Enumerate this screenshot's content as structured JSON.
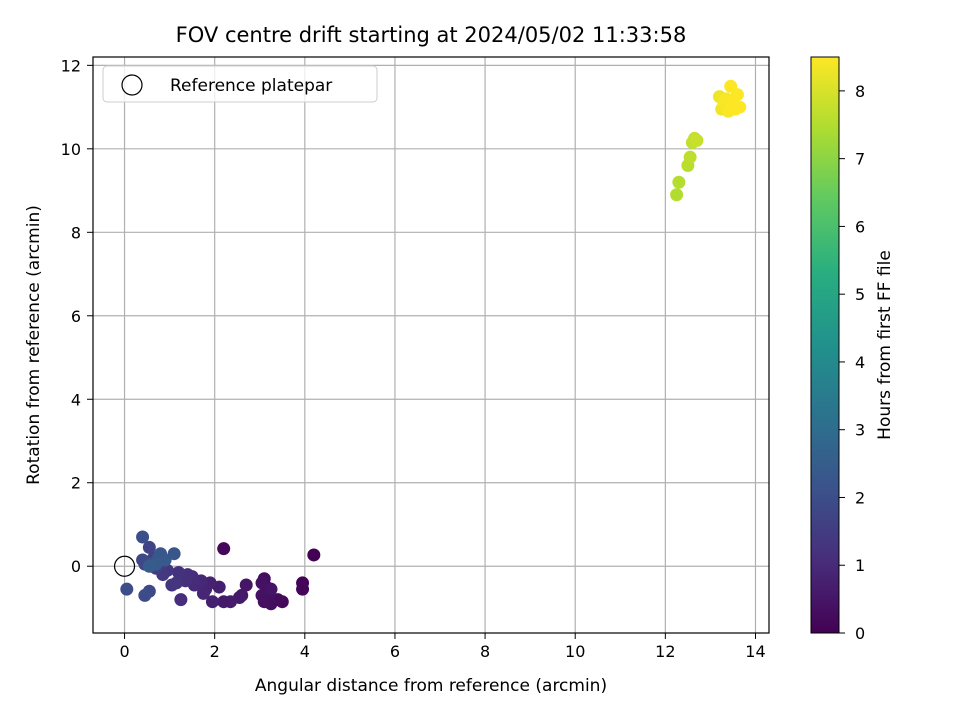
{
  "chart_data": {
    "type": "scatter",
    "title": "FOV centre drift starting at 2024/05/02 11:33:58",
    "xlabel": "Angular distance from reference (arcmin)",
    "ylabel": "Rotation from reference (arcmin)",
    "xlim": [
      -0.7,
      14.3
    ],
    "ylim": [
      -1.6,
      12.2
    ],
    "x_ticks": [
      0,
      2,
      4,
      6,
      8,
      10,
      12,
      14
    ],
    "y_ticks": [
      0,
      2,
      4,
      6,
      8,
      10,
      12
    ],
    "grid": true,
    "colorbar": {
      "label": "Hours from first FF file",
      "range": [
        0,
        8.5
      ],
      "ticks": [
        0,
        1,
        2,
        3,
        4,
        5,
        6,
        7,
        8
      ],
      "colormap": "viridis"
    },
    "legend": {
      "placement": "top-left",
      "entries": [
        "Reference platepar"
      ]
    },
    "reference_point": {
      "x": 0,
      "y": 0
    },
    "points": [
      {
        "x": 4.2,
        "y": 0.27,
        "h": 0.0
      },
      {
        "x": 2.2,
        "y": 0.42,
        "h": 0.15
      },
      {
        "x": 3.95,
        "y": -0.4,
        "h": 0.05
      },
      {
        "x": 3.95,
        "y": -0.55,
        "h": 0.1
      },
      {
        "x": 3.5,
        "y": -0.85,
        "h": 0.2
      },
      {
        "x": 3.4,
        "y": -0.8,
        "h": 0.25
      },
      {
        "x": 3.25,
        "y": -0.9,
        "h": 0.3
      },
      {
        "x": 3.2,
        "y": -0.75,
        "h": 0.35
      },
      {
        "x": 3.15,
        "y": -0.5,
        "h": 0.3
      },
      {
        "x": 3.1,
        "y": -0.85,
        "h": 0.35
      },
      {
        "x": 3.05,
        "y": -0.7,
        "h": 0.4
      },
      {
        "x": 3.1,
        "y": -0.3,
        "h": 0.3
      },
      {
        "x": 3.05,
        "y": -0.4,
        "h": 0.4
      },
      {
        "x": 3.25,
        "y": -0.55,
        "h": 0.45
      },
      {
        "x": 2.7,
        "y": -0.45,
        "h": 0.5
      },
      {
        "x": 2.6,
        "y": -0.7,
        "h": 0.55
      },
      {
        "x": 2.55,
        "y": -0.75,
        "h": 0.6
      },
      {
        "x": 2.35,
        "y": -0.85,
        "h": 0.65
      },
      {
        "x": 2.2,
        "y": -0.85,
        "h": 0.6
      },
      {
        "x": 2.1,
        "y": -0.5,
        "h": 0.7
      },
      {
        "x": 1.95,
        "y": -0.85,
        "h": 0.75
      },
      {
        "x": 1.9,
        "y": -0.4,
        "h": 0.8
      },
      {
        "x": 1.8,
        "y": -0.55,
        "h": 0.85
      },
      {
        "x": 1.75,
        "y": -0.65,
        "h": 0.9
      },
      {
        "x": 1.7,
        "y": -0.35,
        "h": 0.95
      },
      {
        "x": 1.55,
        "y": -0.45,
        "h": 1.0
      },
      {
        "x": 1.5,
        "y": -0.25,
        "h": 1.05
      },
      {
        "x": 1.4,
        "y": -0.2,
        "h": 1.1
      },
      {
        "x": 1.35,
        "y": -0.35,
        "h": 1.15
      },
      {
        "x": 1.25,
        "y": -0.8,
        "h": 1.1
      },
      {
        "x": 1.2,
        "y": -0.15,
        "h": 1.2
      },
      {
        "x": 1.15,
        "y": -0.4,
        "h": 1.25
      },
      {
        "x": 1.05,
        "y": -0.45,
        "h": 1.3
      },
      {
        "x": 0.95,
        "y": -0.1,
        "h": 1.35
      },
      {
        "x": 0.85,
        "y": -0.2,
        "h": 1.4
      },
      {
        "x": 0.8,
        "y": 0.0,
        "h": 1.45
      },
      {
        "x": 0.75,
        "y": 0.1,
        "h": 1.5
      },
      {
        "x": 0.7,
        "y": -0.05,
        "h": 1.55
      },
      {
        "x": 0.65,
        "y": 0.2,
        "h": 1.6
      },
      {
        "x": 0.6,
        "y": 0.0,
        "h": 1.65
      },
      {
        "x": 0.55,
        "y": 0.45,
        "h": 1.7
      },
      {
        "x": 0.5,
        "y": 0.1,
        "h": 1.75
      },
      {
        "x": 0.45,
        "y": 0.05,
        "h": 1.8
      },
      {
        "x": 0.4,
        "y": 0.15,
        "h": 1.85
      },
      {
        "x": 0.55,
        "y": -0.6,
        "h": 1.9
      },
      {
        "x": 0.45,
        "y": -0.7,
        "h": 1.95
      },
      {
        "x": 0.05,
        "y": -0.55,
        "h": 2.0
      },
      {
        "x": 0.4,
        "y": 0.7,
        "h": 2.05
      },
      {
        "x": 0.6,
        "y": 0.05,
        "h": 2.1
      },
      {
        "x": 0.75,
        "y": 0.2,
        "h": 2.2
      },
      {
        "x": 0.8,
        "y": 0.3,
        "h": 2.3
      },
      {
        "x": 0.9,
        "y": 0.15,
        "h": 2.35
      },
      {
        "x": 1.1,
        "y": 0.3,
        "h": 2.25
      },
      {
        "x": 0.7,
        "y": 0.05,
        "h": 2.4
      },
      {
        "x": 0.55,
        "y": 0.0,
        "h": 2.45
      },
      {
        "x": 12.25,
        "y": 8.9,
        "h": 7.5
      },
      {
        "x": 12.3,
        "y": 9.2,
        "h": 7.55
      },
      {
        "x": 12.5,
        "y": 9.6,
        "h": 7.6
      },
      {
        "x": 12.55,
        "y": 9.8,
        "h": 7.65
      },
      {
        "x": 12.6,
        "y": 10.15,
        "h": 7.7
      },
      {
        "x": 12.65,
        "y": 10.25,
        "h": 7.75
      },
      {
        "x": 12.7,
        "y": 10.2,
        "h": 7.8
      },
      {
        "x": 13.2,
        "y": 11.25,
        "h": 8.3
      },
      {
        "x": 13.25,
        "y": 10.95,
        "h": 8.35
      },
      {
        "x": 13.3,
        "y": 11.1,
        "h": 8.4
      },
      {
        "x": 13.35,
        "y": 11.2,
        "h": 8.45
      },
      {
        "x": 13.4,
        "y": 10.9,
        "h": 8.45
      },
      {
        "x": 13.45,
        "y": 11.5,
        "h": 8.5
      },
      {
        "x": 13.5,
        "y": 11.05,
        "h": 8.5
      },
      {
        "x": 13.55,
        "y": 10.95,
        "h": 8.5
      },
      {
        "x": 13.6,
        "y": 11.3,
        "h": 8.5
      },
      {
        "x": 13.65,
        "y": 11.0,
        "h": 8.5
      }
    ]
  }
}
